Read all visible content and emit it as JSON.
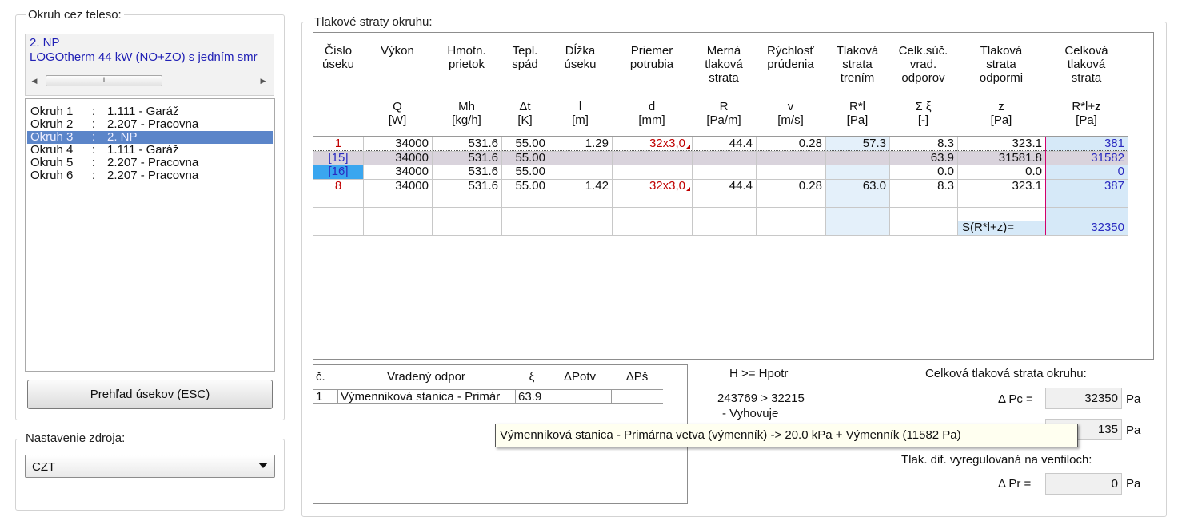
{
  "left": {
    "group_title": "Okruh cez teleso:",
    "selected_line1": "2. NP",
    "selected_line2": "LOGOtherm 44 kW (NO+ZO) s jedním smr",
    "scroll_thumb_glyph": "III",
    "circuits": [
      {
        "name": "Okruh 1",
        "sep": ":",
        "value": "1.111 - Garáž"
      },
      {
        "name": "Okruh 2",
        "sep": ":",
        "value": "2.207 - Pracovna"
      },
      {
        "name": "Okruh 3",
        "sep": ":",
        "value": "2. NP"
      },
      {
        "name": "Okruh 4",
        "sep": ":",
        "value": "1.111 - Garáž"
      },
      {
        "name": "Okruh 5",
        "sep": ":",
        "value": "2.207 - Pracovna"
      },
      {
        "name": "Okruh 6",
        "sep": ":",
        "value": "2.207 - Pracovna"
      }
    ],
    "selected_index": 2,
    "overview_button": "Prehľad úsekov (ESC)",
    "source_group_title": "Nastavenie zdroja:",
    "source_value": "CZT"
  },
  "grid": {
    "group_title": "Tlakové straty okruhu:",
    "columns": [
      {
        "top": "Číslo\núseku",
        "bottom": ""
      },
      {
        "top": "Výkon",
        "bottom": "Q\n[W]"
      },
      {
        "top": "Hmotn.\nprietok",
        "bottom": "Mh\n[kg/h]"
      },
      {
        "top": "Tepl.\nspád",
        "bottom": "Δt\n[K]"
      },
      {
        "top": "Dĺžka\núseku",
        "bottom": "l\n[m]"
      },
      {
        "top": "Priemer\npotrubia",
        "bottom": "d\n[mm]"
      },
      {
        "top": "Merná\ntlaková\nstrata",
        "bottom": "R\n[Pa/m]"
      },
      {
        "top": "Rýchlosť\nprúdenia",
        "bottom": "v\n[m/s]"
      },
      {
        "top": "Tlaková\nstrata\ntrením",
        "bottom": "R*l\n[Pa]"
      },
      {
        "top": "Celk.súč.\nvrad.\nodporov",
        "bottom": "Σ ξ\n[-]"
      },
      {
        "top": "Tlaková\nstrata\nodpormi",
        "bottom": "z\n[Pa]"
      },
      {
        "top": "Celková\ntlaková\nstrata",
        "bottom": "R*l+z\n[Pa]"
      }
    ],
    "rows": [
      [
        "1",
        "34000",
        "531.6",
        "55.00",
        "1.29",
        "32x3,0",
        "44.4",
        "0.28",
        "57.3",
        "8.3",
        "323.1",
        "381"
      ],
      [
        "[15]",
        "34000",
        "531.6",
        "55.00",
        "",
        "",
        "",
        "",
        "",
        "63.9",
        "31581.8",
        "31582"
      ],
      [
        "[16]",
        "34000",
        "531.6",
        "55.00",
        "",
        "",
        "",
        "",
        "",
        "0.0",
        "0.0",
        "0"
      ],
      [
        "8",
        "34000",
        "531.6",
        "55.00",
        "1.42",
        "32x3,0",
        "44.4",
        "0.28",
        "63.0",
        "8.3",
        "323.1",
        "387"
      ]
    ],
    "sum_label": "S(R*l+z)=",
    "sum_value": "32350"
  },
  "resistances": {
    "headers": [
      "č.",
      "Vradený odpor",
      "ξ",
      "ΔPotv",
      "ΔPš"
    ],
    "rows": [
      [
        "1",
        "Výmenniková stanica - Primár",
        "63.9",
        "",
        ""
      ]
    ]
  },
  "summary": {
    "h_label": "H  >=  Hpotr",
    "h_compare": "243769 > 32215",
    "h_result": "- Vyhovuje",
    "total_title": "Celková tlaková strata okruhu:",
    "dpc_label": "Δ Pc =",
    "dpc_value": "32350",
    "dpc_unit": "Pa",
    "second_value": "135",
    "second_unit": "Pa",
    "valve_title": "Tlak. dif. vyregulovaná na ventiloch:",
    "dpr_label": "Δ Pr =",
    "dpr_value": "0",
    "dpr_unit": "Pa"
  },
  "tooltip": "Výmenniková stanica - Primárna vetva (výmenník)  -> 20.0 kPa + Výmenník (11582 Pa)",
  "colors": {
    "red_text": "#c00000",
    "blue_text": "#2a2ac0",
    "selection": "#3399ff",
    "total_col_bg": "#d6e9f8",
    "friction_col_bg": "#e4f0fa"
  }
}
